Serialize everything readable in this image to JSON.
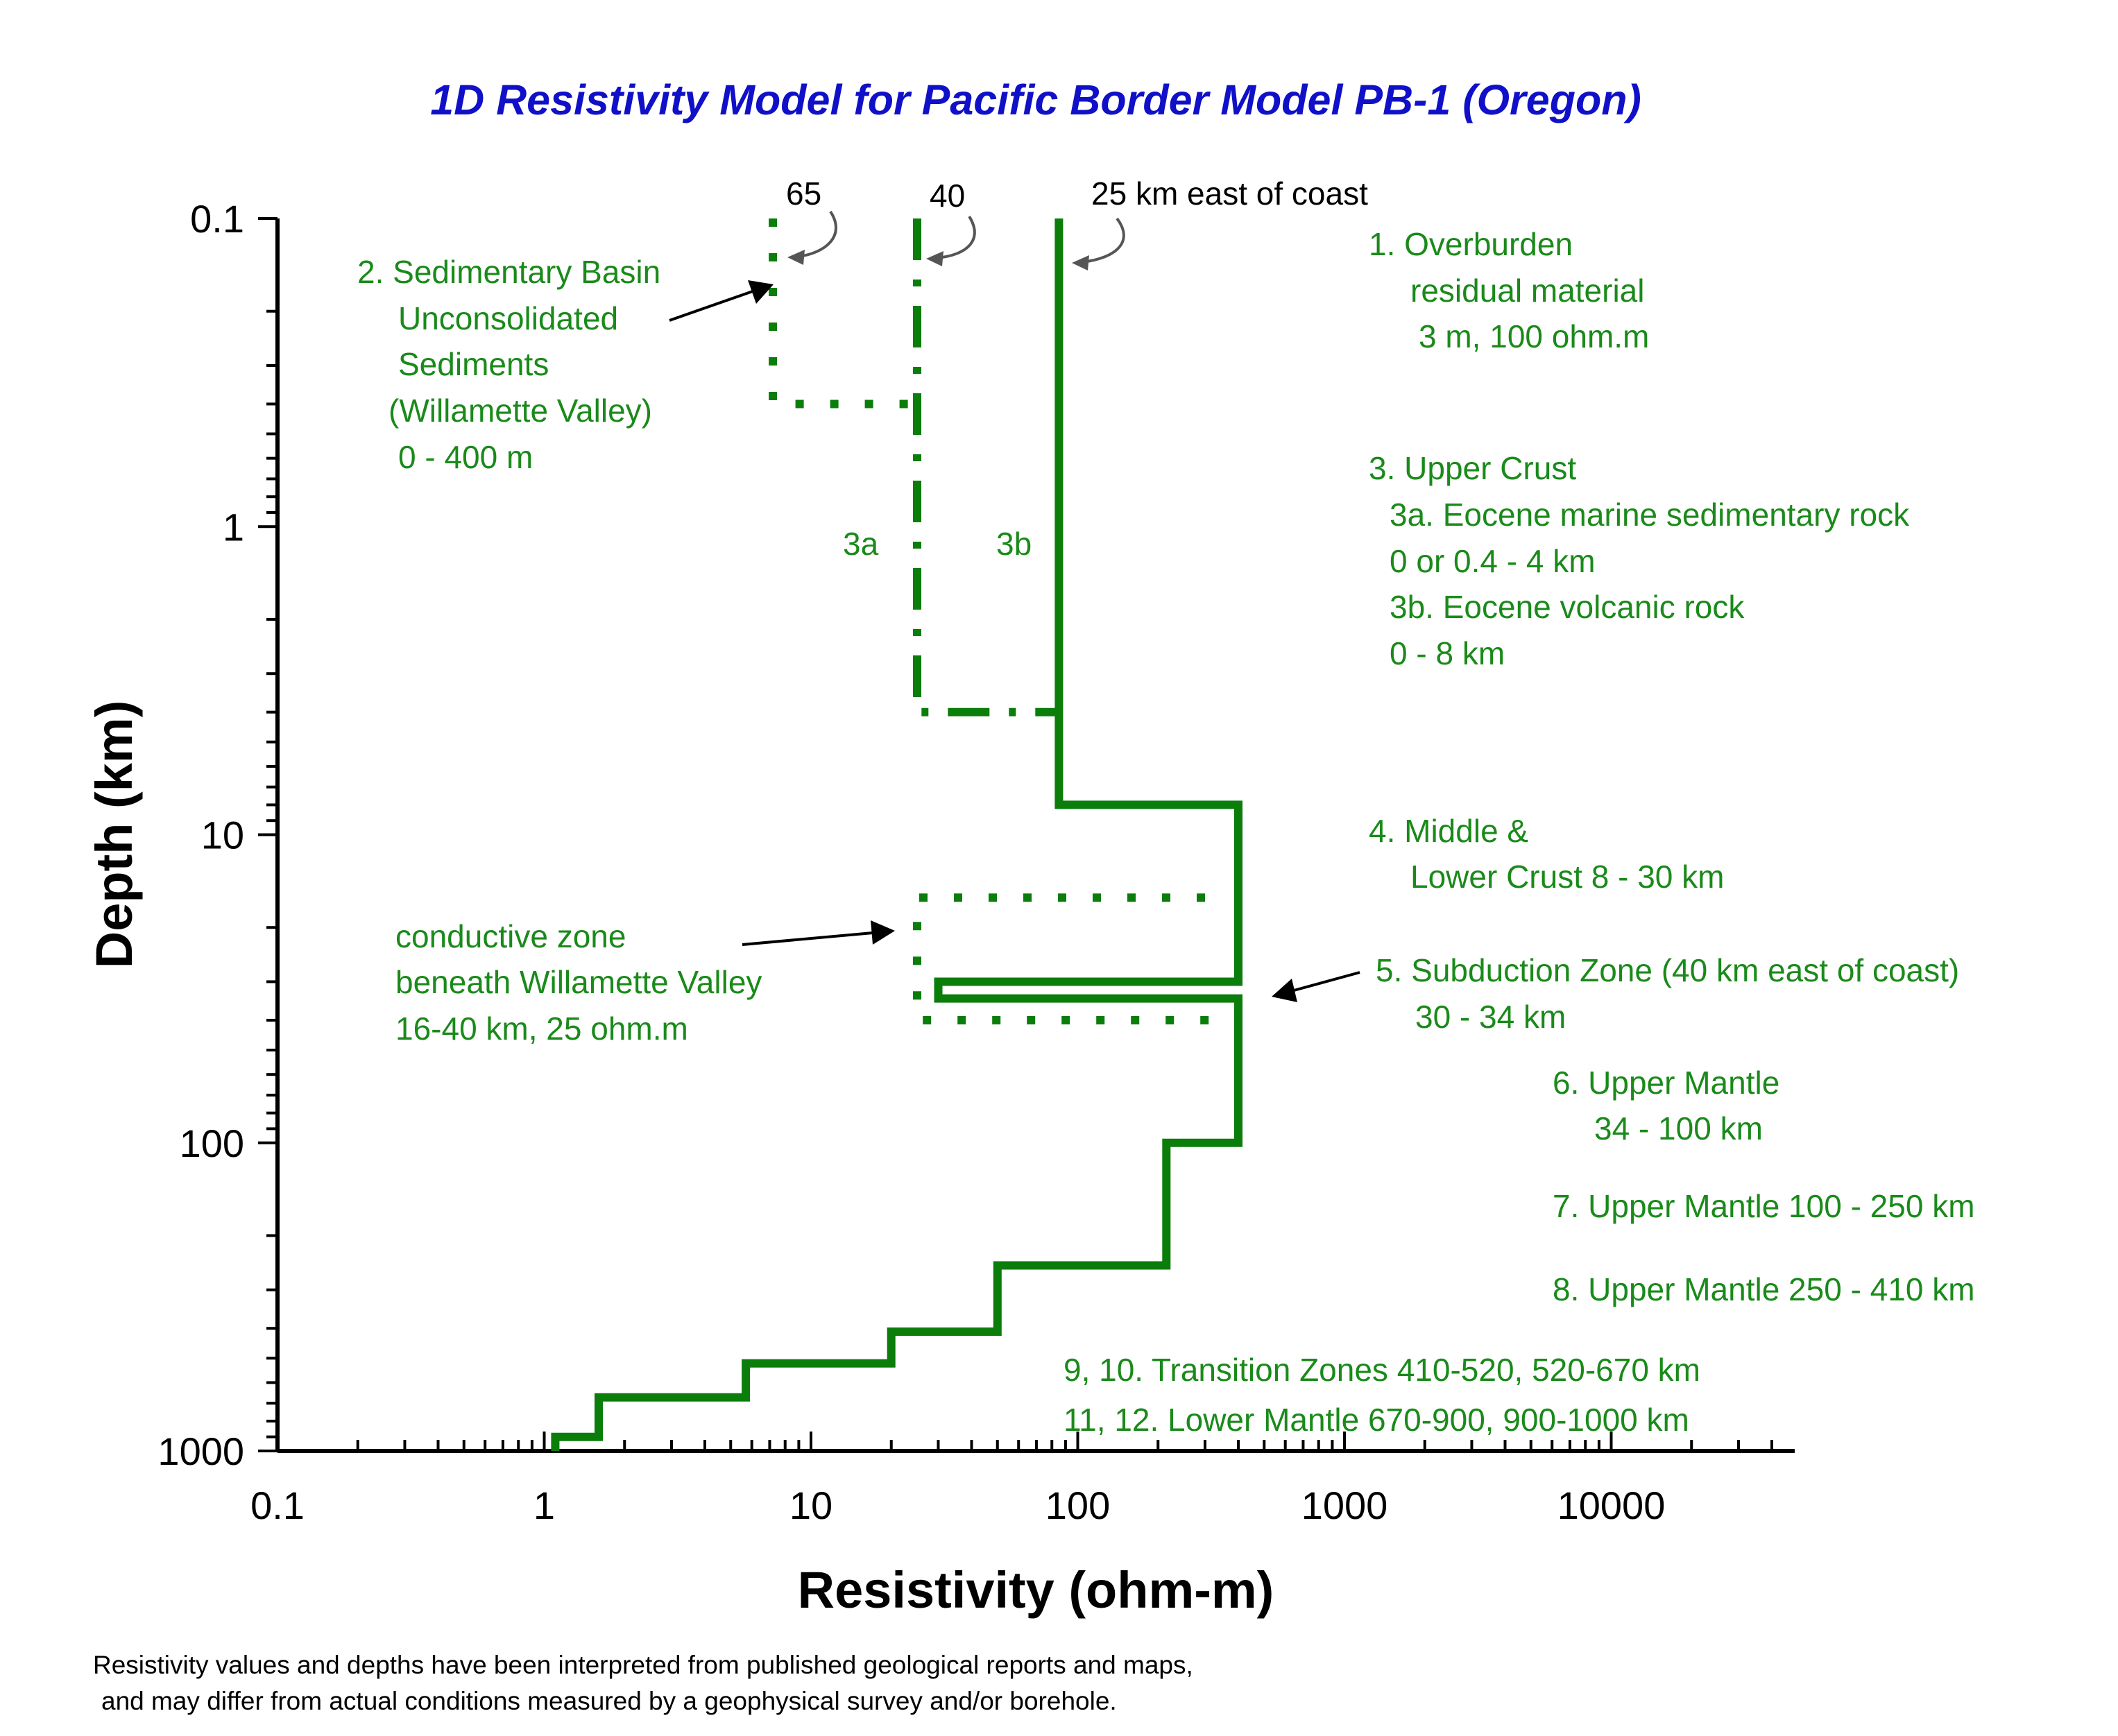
{
  "chart_data": {
    "type": "line",
    "title": "1D Resistivity Model for Pacific Border   Model PB-1 (Oregon)",
    "xlabel": "Resistivity (ohm-m)",
    "ylabel": "Depth (km)",
    "xscale": "log",
    "yscale": "log",
    "y_inverted": true,
    "xlim": [
      0.1,
      50000
    ],
    "ylim": [
      0.1,
      1000
    ],
    "x_ticks": [
      {
        "value": 0.1,
        "label": "0.1"
      },
      {
        "value": 1,
        "label": "1"
      },
      {
        "value": 10,
        "label": "10"
      },
      {
        "value": 100,
        "label": "100"
      },
      {
        "value": 1000,
        "label": "1000"
      },
      {
        "value": 10000,
        "label": "10000"
      }
    ],
    "y_ticks": [
      {
        "value": 0.1,
        "label": "0.1"
      },
      {
        "value": 1,
        "label": "1"
      },
      {
        "value": 10,
        "label": "10"
      },
      {
        "value": 100,
        "label": "100"
      },
      {
        "value": 1000,
        "label": "1000"
      }
    ],
    "grid": false,
    "colors": {
      "series": "#0a7d0a",
      "annotation": "#1a8a1a",
      "title": "#1010c8",
      "axis": "#000000"
    },
    "series": [
      {
        "name": "25 km east of coast",
        "style": "solid",
        "points": [
          [
            85,
            0.1
          ],
          [
            85,
            8
          ],
          [
            400,
            8
          ],
          [
            400,
            30
          ],
          [
            30,
            30
          ],
          [
            30,
            34
          ],
          [
            400,
            34
          ],
          [
            400,
            100
          ],
          [
            215,
            100
          ],
          [
            215,
            250
          ],
          [
            50,
            250
          ],
          [
            50,
            410
          ],
          [
            20,
            410
          ],
          [
            20,
            520
          ],
          [
            5.7,
            520
          ],
          [
            5.7,
            670
          ],
          [
            1.6,
            670
          ],
          [
            1.6,
            900
          ],
          [
            1.1,
            900
          ],
          [
            1.1,
            1000
          ]
        ]
      },
      {
        "name": "40",
        "style": "dashdot",
        "points": [
          [
            25,
            0.1
          ],
          [
            25,
            4
          ],
          [
            85,
            4
          ]
        ]
      },
      {
        "name": "65",
        "style": "dotted",
        "points": [
          [
            7.2,
            0.1
          ],
          [
            7.2,
            0.4
          ],
          [
            25,
            0.4
          ]
        ]
      },
      {
        "name": "conductive zone",
        "style": "dotted",
        "points": [
          [
            300,
            16
          ],
          [
            25,
            16
          ],
          [
            25,
            40
          ],
          [
            400,
            40
          ]
        ]
      }
    ],
    "annotations": {
      "label_65": "65",
      "label_40": "40",
      "label_25": "25 km east of coast",
      "label_3a": "3a",
      "label_3b": "3b",
      "sedimentary": [
        "2. Sedimentary Basin",
        "Unconsolidated",
        "Sediments",
        "(Willamette Valley)",
        "0 - 400 m"
      ],
      "overburden": [
        "1. Overburden",
        "residual material",
        "3 m, 100 ohm.m"
      ],
      "upper_crust": [
        "3. Upper Crust",
        "3a. Eocene marine sedimentary rock",
        "0 or 0.4 - 4 km",
        "3b. Eocene volcanic rock",
        "0 - 8 km"
      ],
      "middle_crust": [
        "4. Middle &",
        "Lower Crust 8 - 30 km"
      ],
      "conductive": [
        "conductive zone",
        "beneath Willamette Valley",
        "16-40 km, 25 ohm.m"
      ],
      "subduction": [
        "5. Subduction Zone (40 km east of coast)",
        "30 - 34 km"
      ],
      "upper_mantle_6": [
        "6. Upper Mantle",
        "34 - 100 km"
      ],
      "upper_mantle_7": "7. Upper Mantle 100 - 250 km",
      "upper_mantle_8": "8. Upper Mantle  250 - 410 km",
      "transition": "9, 10. Transition Zones 410-520, 520-670 km",
      "lower_mantle": "11, 12. Lower Mantle 670-900, 900-1000 km"
    },
    "footnote": [
      "Resistivity values and depths have been interpreted from published geological reports and maps,",
      "and may differ from actual conditions measured by a geophysical survey and/or borehole."
    ]
  }
}
